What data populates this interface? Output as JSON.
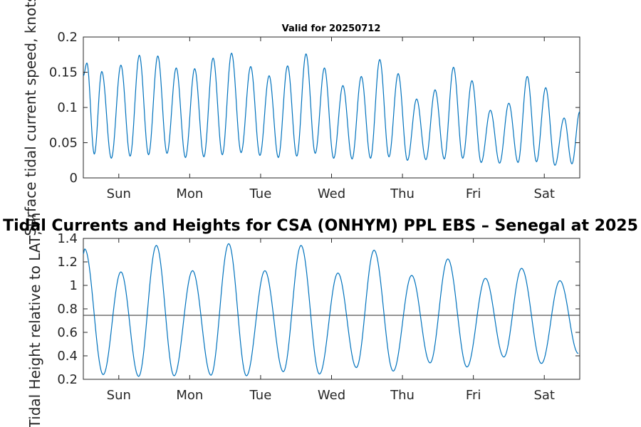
{
  "figure_title": "Tidal Currents and Heights for CSA (ONHYM) PPL EBS  – Senegal at 2025",
  "chart_data": [
    {
      "type": "line",
      "title": "Valid for 20250712",
      "ylabel": "Surface tidal current speed, knots",
      "xlabel": "",
      "x_tick_labels": [
        "Sun",
        "Mon",
        "Tue",
        "Wed",
        "Thu",
        "Fri",
        "Sat"
      ],
      "y_ticks": [
        0,
        0.05,
        0.1,
        0.15,
        0.2
      ],
      "y_tick_labels": [
        "0",
        "0.05",
        "0.1",
        "0.15",
        "0.2"
      ],
      "ylim": [
        0,
        0.2
      ],
      "xlim_days": [
        0,
        7
      ],
      "x_unit": "days from 2025-07-12 00:00",
      "line_color": "#0072BD",
      "series": [
        {
          "peaks": [
            {
              "x": 0.05,
              "y": 0.163
            },
            {
              "x": 0.26,
              "y": 0.151
            },
            {
              "x": 0.53,
              "y": 0.16
            },
            {
              "x": 0.79,
              "y": 0.174
            },
            {
              "x": 1.05,
              "y": 0.173
            },
            {
              "x": 1.31,
              "y": 0.156
            },
            {
              "x": 1.57,
              "y": 0.155
            },
            {
              "x": 1.83,
              "y": 0.17
            },
            {
              "x": 2.09,
              "y": 0.177
            },
            {
              "x": 2.36,
              "y": 0.158
            },
            {
              "x": 2.62,
              "y": 0.145
            },
            {
              "x": 2.88,
              "y": 0.159
            },
            {
              "x": 3.14,
              "y": 0.176
            },
            {
              "x": 3.4,
              "y": 0.156
            },
            {
              "x": 3.66,
              "y": 0.131
            },
            {
              "x": 3.92,
              "y": 0.144
            },
            {
              "x": 4.18,
              "y": 0.168
            },
            {
              "x": 4.44,
              "y": 0.148
            },
            {
              "x": 4.7,
              "y": 0.112
            },
            {
              "x": 4.96,
              "y": 0.125
            },
            {
              "x": 5.22,
              "y": 0.157
            },
            {
              "x": 5.48,
              "y": 0.138
            },
            {
              "x": 5.74,
              "y": 0.096
            },
            {
              "x": 6.0,
              "y": 0.106
            },
            {
              "x": 6.26,
              "y": 0.144
            },
            {
              "x": 6.52,
              "y": 0.128
            },
            {
              "x": 6.78,
              "y": 0.085
            },
            {
              "x": 7.0,
              "y": 0.094
            }
          ],
          "troughs": [
            0.034,
            0.028,
            0.031,
            0.033,
            0.035,
            0.029,
            0.03,
            0.033,
            0.036,
            0.032,
            0.029,
            0.031,
            0.035,
            0.028,
            0.027,
            0.028,
            0.03,
            0.025,
            0.026,
            0.027,
            0.028,
            0.022,
            0.021,
            0.022,
            0.023,
            0.018,
            0.02
          ]
        }
      ]
    },
    {
      "type": "line",
      "title": "",
      "ylabel": "Tidal Height relative to LAT, m",
      "xlabel": "",
      "x_tick_labels": [
        "Sun",
        "Mon",
        "Tue",
        "Wed",
        "Thu",
        "Fri",
        "Sat"
      ],
      "y_ticks": [
        0.2,
        0.4,
        0.6,
        0.8,
        1.0,
        1.2,
        1.4
      ],
      "y_tick_labels": [
        "0.2",
        "0.4",
        "0.6",
        "0.8",
        "1",
        "1.2",
        "1.4"
      ],
      "ylim": [
        0.2,
        1.4
      ],
      "xlim_days": [
        0,
        7
      ],
      "x_unit": "days from 2025-07-12 00:00",
      "line_color": "#0072BD",
      "reference_line": {
        "y": 0.745,
        "color": "#404040"
      },
      "series": [
        {
          "extrema": [
            {
              "x": 0.02,
              "y": 1.31
            },
            {
              "x": 0.28,
              "y": 0.24
            },
            {
              "x": 0.53,
              "y": 1.115
            },
            {
              "x": 0.78,
              "y": 0.225
            },
            {
              "x": 1.03,
              "y": 1.34
            },
            {
              "x": 1.28,
              "y": 0.23
            },
            {
              "x": 1.54,
              "y": 1.125
            },
            {
              "x": 1.8,
              "y": 0.235
            },
            {
              "x": 2.05,
              "y": 1.355
            },
            {
              "x": 2.3,
              "y": 0.23
            },
            {
              "x": 2.56,
              "y": 1.125
            },
            {
              "x": 2.82,
              "y": 0.265
            },
            {
              "x": 3.07,
              "y": 1.34
            },
            {
              "x": 3.33,
              "y": 0.245
            },
            {
              "x": 3.59,
              "y": 1.105
            },
            {
              "x": 3.85,
              "y": 0.3
            },
            {
              "x": 4.1,
              "y": 1.3
            },
            {
              "x": 4.37,
              "y": 0.27
            },
            {
              "x": 4.63,
              "y": 1.085
            },
            {
              "x": 4.89,
              "y": 0.34
            },
            {
              "x": 5.14,
              "y": 1.225
            },
            {
              "x": 5.41,
              "y": 0.305
            },
            {
              "x": 5.67,
              "y": 1.06
            },
            {
              "x": 5.93,
              "y": 0.39
            },
            {
              "x": 6.18,
              "y": 1.145
            },
            {
              "x": 6.46,
              "y": 0.335
            },
            {
              "x": 6.72,
              "y": 1.04
            },
            {
              "x": 6.98,
              "y": 0.42
            }
          ]
        }
      ]
    }
  ]
}
